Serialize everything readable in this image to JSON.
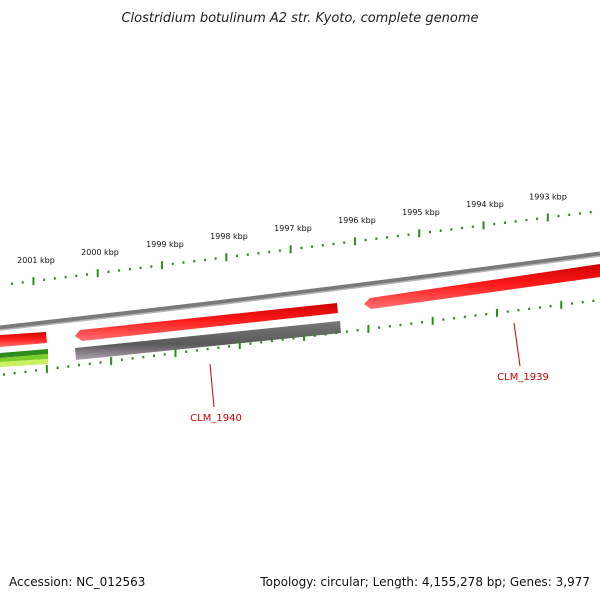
{
  "title": "Clostridium botulinum A2 str. Kyoto, complete genome",
  "ruler": {
    "labels": [
      "2001 kbp",
      "2000 kbp",
      "1999 kbp",
      "1998 kbp",
      "1997 kbp",
      "1996 kbp",
      "1995 kbp",
      "1994 kbp",
      "1993 kbp"
    ],
    "tick_color": "#2e8b1e"
  },
  "genes": [
    {
      "name": "CLM_1939",
      "strand": "+",
      "color": "#ff0000"
    },
    {
      "name": "CLM_1940",
      "strand": "-",
      "color": "#666666"
    }
  ],
  "colors": {
    "forward_gene": "#ff0000",
    "reverse_gene": "#666666",
    "backbone": "#888888",
    "label": "#cc0000",
    "green_features": [
      "#2e8b1e",
      "#7ccd2a",
      "#c8f060"
    ]
  },
  "footer": {
    "accession": "Accession: NC_012563",
    "summary": "Topology: circular; Length: 4,155,278 bp; Genes: 3,977"
  }
}
